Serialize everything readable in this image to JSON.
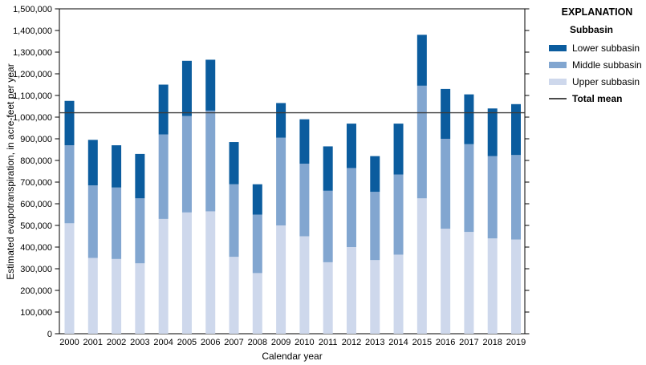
{
  "axes": {
    "x_title": "Calendar year",
    "y_title": "Estimated evapotranspiration, in acre-feet per year"
  },
  "legend": {
    "title": "EXPLANATION",
    "subtitle": "Subbasin",
    "items": [
      {
        "label": "Lower subbasin",
        "color": "#0b5c9e"
      },
      {
        "label": "Middle subbasin",
        "color": "#82a6d0"
      },
      {
        "label": "Upper subbasin",
        "color": "#ced8ec"
      }
    ],
    "mean_item": {
      "label": "Total mean",
      "color": "#4a4a4a"
    }
  },
  "chart_data": {
    "type": "bar",
    "stacked": true,
    "grid": false,
    "legend_position": "right",
    "xlabel": "Calendar year",
    "ylabel": "Estimated evapotranspiration, in acre-feet per year",
    "ylim": [
      0,
      1500000
    ],
    "ytick_interval": 100000,
    "categories": [
      "2000",
      "2001",
      "2002",
      "2003",
      "2004",
      "2005",
      "2006",
      "2007",
      "2008",
      "2009",
      "2010",
      "2011",
      "2012",
      "2013",
      "2014",
      "2015",
      "2016",
      "2017",
      "2018",
      "2019"
    ],
    "stack_order_bottom_to_top": [
      "Upper subbasin",
      "Middle subbasin",
      "Lower subbasin"
    ],
    "series": [
      {
        "name": "Upper subbasin",
        "color": "#ced8ec",
        "values": [
          510000,
          350000,
          345000,
          325000,
          530000,
          560000,
          565000,
          355000,
          280000,
          500000,
          450000,
          330000,
          400000,
          340000,
          365000,
          625000,
          485000,
          470000,
          440000,
          435000
        ]
      },
      {
        "name": "Middle subbasin",
        "color": "#82a6d0",
        "values": [
          360000,
          335000,
          330000,
          300000,
          390000,
          445000,
          465000,
          335000,
          270000,
          405000,
          335000,
          330000,
          365000,
          315000,
          370000,
          520000,
          415000,
          405000,
          380000,
          390000
        ]
      },
      {
        "name": "Lower subbasin",
        "color": "#0b5c9e",
        "values": [
          205000,
          210000,
          195000,
          205000,
          230000,
          255000,
          235000,
          195000,
          140000,
          160000,
          205000,
          205000,
          205000,
          165000,
          235000,
          235000,
          230000,
          230000,
          220000,
          235000
        ]
      }
    ],
    "totals": [
      1075000,
      895000,
      870000,
      830000,
      1150000,
      1260000,
      1265000,
      885000,
      690000,
      1065000,
      990000,
      865000,
      970000,
      820000,
      970000,
      1380000,
      1130000,
      1105000,
      1040000,
      1060000
    ],
    "total_mean": 1020000,
    "mean_line_color": "#3a3a3a"
  }
}
